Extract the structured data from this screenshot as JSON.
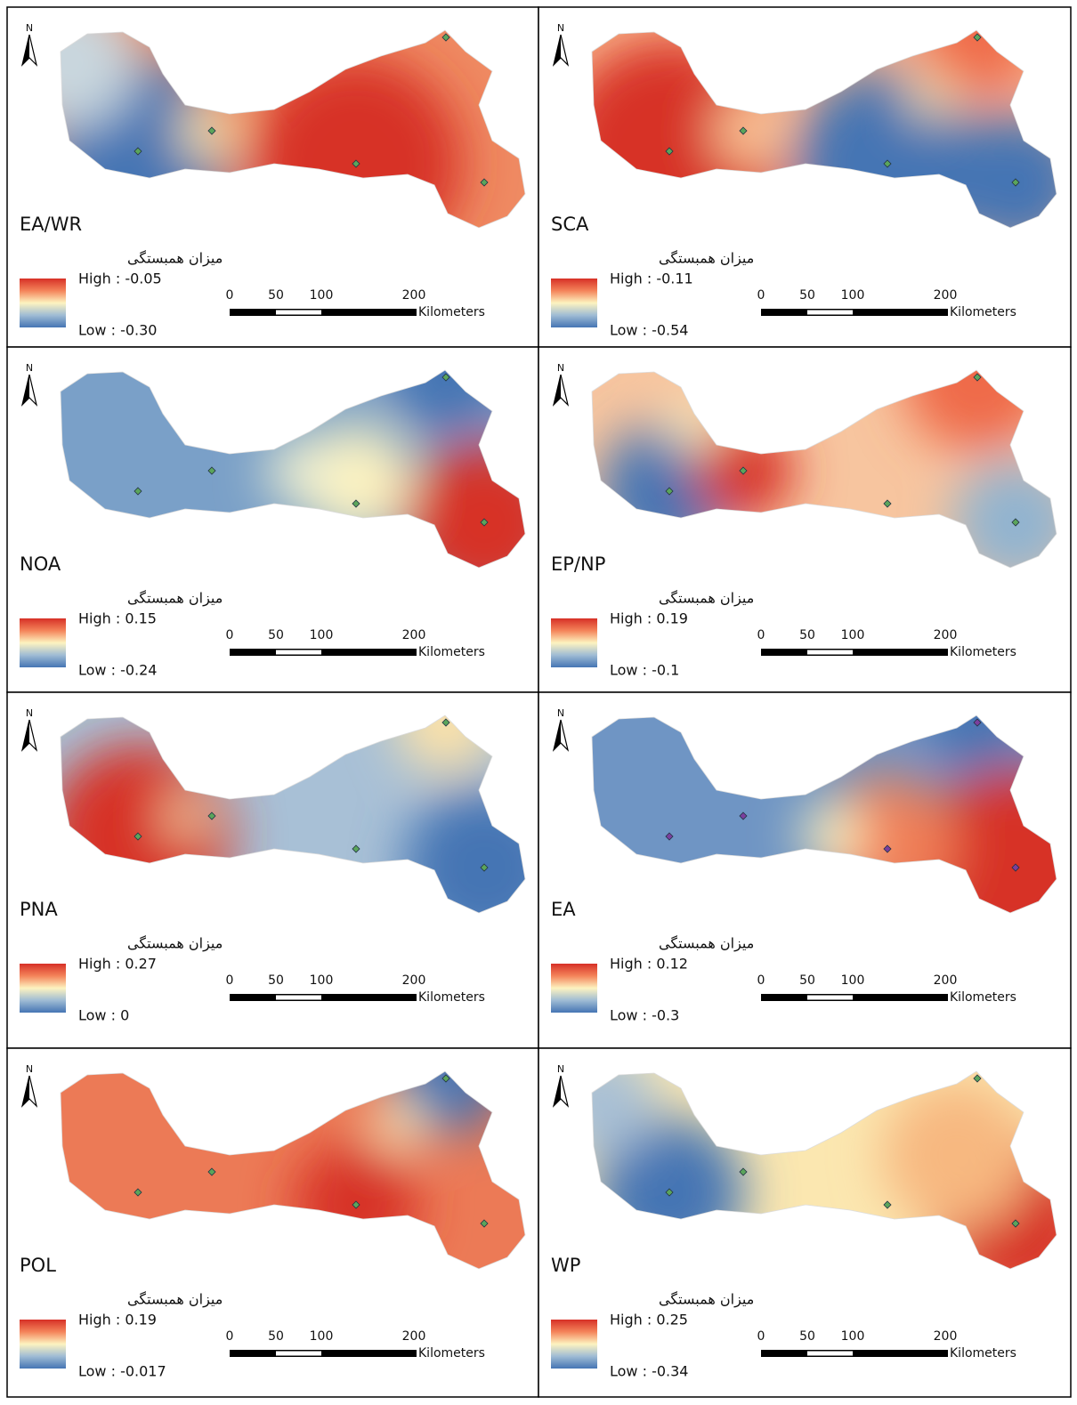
{
  "panels": [
    {
      "title": "EA/WR",
      "legend_title": "میزان همبستگی",
      "high": "High : -0.05",
      "low": "Low : -0.30",
      "north": "N",
      "scale": {
        "ticks": [
          "0",
          "50",
          "100",
          "200"
        ],
        "unit": "Kilometers"
      }
    },
    {
      "title": "SCA",
      "legend_title": "میزان همبستگی",
      "high": "High : -0.11",
      "low": "Low : -0.54",
      "north": "N",
      "scale": {
        "ticks": [
          "0",
          "50",
          "100",
          "200"
        ],
        "unit": "Kilometers"
      }
    },
    {
      "title": "NOA",
      "legend_title": "میزان همبستگی",
      "high": "High : 0.15",
      "low": "Low : -0.24",
      "north": "N",
      "scale": {
        "ticks": [
          "0",
          "50",
          "100",
          "200"
        ],
        "unit": "Kilometers"
      }
    },
    {
      "title": "EP/NP",
      "legend_title": "میزان همبستگی",
      "high": "High : 0.19",
      "low": "Low : -0.1",
      "north": "N",
      "scale": {
        "ticks": [
          "0",
          "50",
          "100",
          "200"
        ],
        "unit": "Kilometers"
      }
    },
    {
      "title": "PNA",
      "legend_title": "میزان همبستگی",
      "high": "High : 0.27",
      "low": "Low : 0",
      "north": "N",
      "scale": {
        "ticks": [
          "0",
          "50",
          "100",
          "200"
        ],
        "unit": "Kilometers"
      }
    },
    {
      "title": "EA",
      "legend_title": "میزان همبستگی",
      "high": "High : 0.12",
      "low": "Low : -0.3",
      "north": "N",
      "scale": {
        "ticks": [
          "0",
          "50",
          "100",
          "200"
        ],
        "unit": "Kilometers"
      }
    },
    {
      "title": "POL",
      "legend_title": "میزان همبستگی",
      "high": "High : 0.19",
      "low": "Low : -0.017",
      "north": "N",
      "scale": {
        "ticks": [
          "0",
          "50",
          "100",
          "200"
        ],
        "unit": "Kilometers"
      }
    },
    {
      "title": "WP",
      "legend_title": "میزان همبستگی",
      "high": "High : 0.25",
      "low": "Low : -0.34",
      "north": "N",
      "scale": {
        "ticks": [
          "0",
          "50",
          "100",
          "200"
        ],
        "unit": "Kilometers"
      }
    }
  ]
}
